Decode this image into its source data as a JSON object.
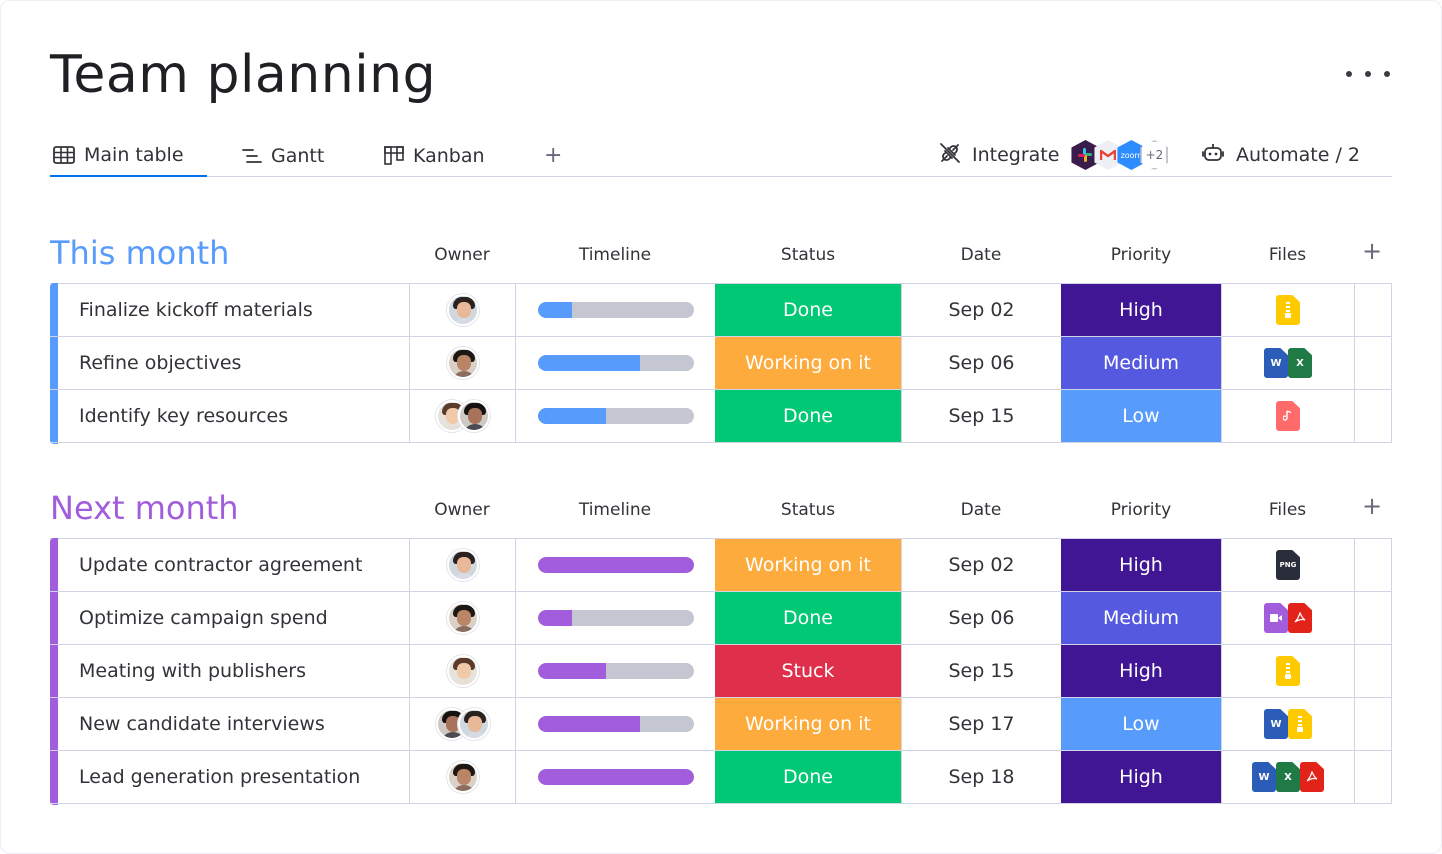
{
  "page": {
    "title": "Team planning",
    "more_icon": "more-horizontal-icon"
  },
  "views": {
    "tabs": [
      {
        "label": "Main table",
        "icon": "table-icon",
        "active": true
      },
      {
        "label": "Gantt",
        "icon": "gantt-icon",
        "active": false
      },
      {
        "label": "Kanban",
        "icon": "kanban-icon",
        "active": false
      }
    ],
    "add_label": "+",
    "integrate_label": "Integrate",
    "integrate_more": "+2",
    "integrate_apps": [
      "slack-icon",
      "gmail-icon",
      "zoom-icon"
    ],
    "zoom_text": "zoom",
    "automate_label": "Automate / 2"
  },
  "columns": {
    "owner": "Owner",
    "timeline": "Timeline",
    "status": "Status",
    "date": "Date",
    "priority": "Priority",
    "files": "Files",
    "add": "+"
  },
  "colors": {
    "done": "#00c875",
    "working": "#fdab3d",
    "stuck": "#df2f4a",
    "high": "#401694",
    "medium": "#5559df",
    "low": "#579bfc",
    "group1": "#579bfc",
    "group2": "#a25ddc"
  },
  "groups": [
    {
      "title": "This month",
      "color": "#579bfc",
      "rows": [
        {
          "name": "Finalize kickoff materials",
          "owners": 1,
          "progress": 0.22,
          "status": "Done",
          "status_color": "#00c875",
          "date": "Sep 02",
          "priority": "High",
          "priority_color": "#401694",
          "files": [
            "zip"
          ]
        },
        {
          "name": "Refine objectives",
          "owners": 1,
          "progress": 0.66,
          "status": "Working on it",
          "status_color": "#fdab3d",
          "date": "Sep 06",
          "priority": "Medium",
          "priority_color": "#5559df",
          "files": [
            "word",
            "excel"
          ]
        },
        {
          "name": "Identify key resources",
          "owners": 2,
          "progress": 0.44,
          "status": "Done",
          "status_color": "#00c875",
          "date": "Sep 15",
          "priority": "Low",
          "priority_color": "#579bfc",
          "files": [
            "audio"
          ]
        }
      ]
    },
    {
      "title": "Next month",
      "color": "#a25ddc",
      "rows": [
        {
          "name": "Update contractor agreement",
          "owners": 1,
          "progress": 1.0,
          "status": "Working on it",
          "status_color": "#fdab3d",
          "date": "Sep 02",
          "priority": "High",
          "priority_color": "#401694",
          "files": [
            "png"
          ]
        },
        {
          "name": "Optimize campaign spend",
          "owners": 1,
          "progress": 0.22,
          "status": "Done",
          "status_color": "#00c875",
          "date": "Sep 06",
          "priority": "Medium",
          "priority_color": "#5559df",
          "files": [
            "video",
            "pdf"
          ]
        },
        {
          "name": "Meating with publishers",
          "owners": 1,
          "progress": 0.44,
          "status": "Stuck",
          "status_color": "#df2f4a",
          "date": "Sep 15",
          "priority": "High",
          "priority_color": "#401694",
          "files": [
            "zip"
          ]
        },
        {
          "name": "New candidate interviews",
          "owners": 2,
          "progress": 0.66,
          "status": "Working on it",
          "status_color": "#fdab3d",
          "date": "Sep 17",
          "priority": "Low",
          "priority_color": "#579bfc",
          "files": [
            "word",
            "zip"
          ]
        },
        {
          "name": "Lead generation presentation",
          "owners": 1,
          "progress": 1.0,
          "status": "Done",
          "status_color": "#00c875",
          "date": "Sep 18",
          "priority": "High",
          "priority_color": "#401694",
          "files": [
            "word",
            "excel",
            "pdf"
          ]
        }
      ]
    }
  ],
  "file_labels": {
    "word": "W",
    "excel": "X",
    "png": "PNG"
  }
}
